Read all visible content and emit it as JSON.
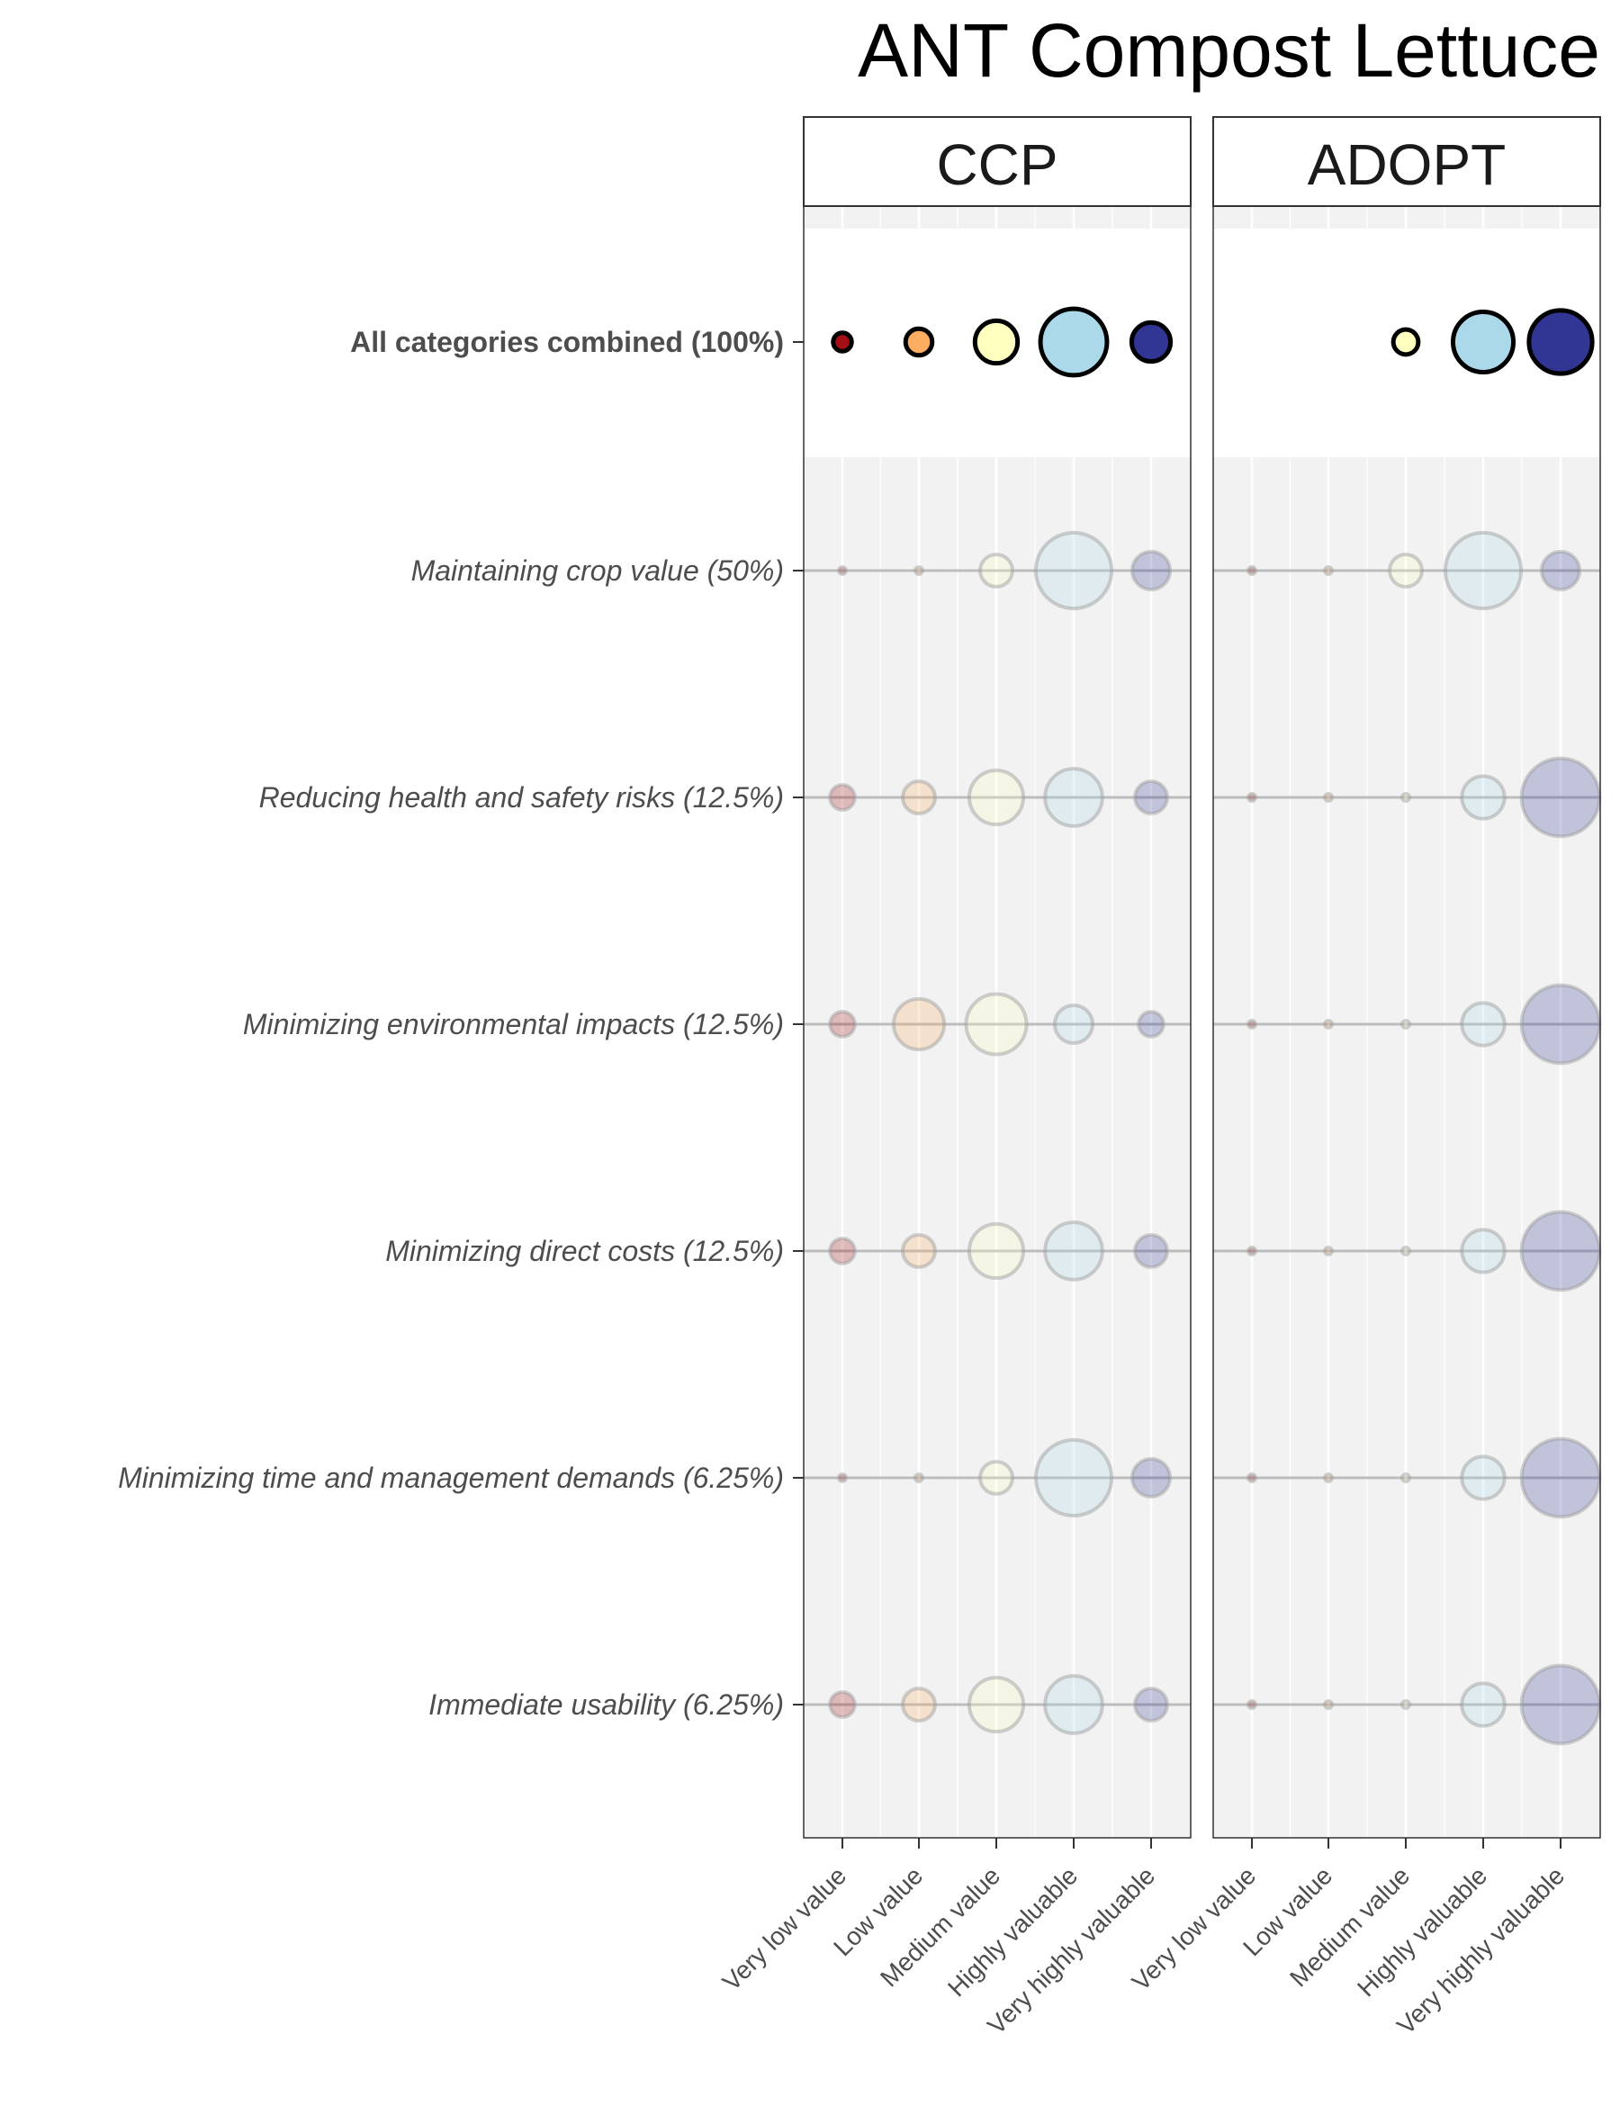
{
  "chart_data": {
    "type": "scatter",
    "title": "ANT Compost Lettuce",
    "facets": [
      "CCP",
      "ADOPT"
    ],
    "x_categories": [
      "Very low value",
      "Low value",
      "Medium value",
      "Highly valuable",
      "Very highly valuable"
    ],
    "y_categories": [
      "All categories combined (100%)",
      "Maintaining crop value (50%)",
      "Reducing health and safety risks (12.5%)",
      "Minimizing environmental impacts (12.5%)",
      "Minimizing direct costs (12.5%)",
      "Minimizing time and management demands (6.25%)",
      "Immediate usability (6.25%)"
    ],
    "highlighted_row": "All categories combined (100%)",
    "colors": [
      "#a50f15",
      "#fdae61",
      "#ffffbf",
      "#abd9e9",
      "#313695"
    ],
    "size_values": {
      "CCP": [
        [
          0.02,
          0.06,
          0.2,
          0.56,
          0.16
        ],
        [
          0.0,
          0.0,
          0.1,
          0.75,
          0.15
        ],
        [
          0.05,
          0.1,
          0.35,
          0.4,
          0.1
        ],
        [
          0.05,
          0.3,
          0.45,
          0.15,
          0.05
        ],
        [
          0.05,
          0.1,
          0.35,
          0.4,
          0.1
        ],
        [
          0.0,
          0.0,
          0.1,
          0.75,
          0.15
        ],
        [
          0.05,
          0.1,
          0.35,
          0.4,
          0.1
        ]
      ],
      "ADOPT": [
        [
          0.0,
          0.0,
          0.05,
          0.45,
          0.5
        ],
        [
          0.0,
          0.0,
          0.1,
          0.75,
          0.15
        ],
        [
          0.0,
          0.0,
          0.0,
          0.2,
          0.8
        ],
        [
          0.0,
          0.0,
          0.0,
          0.2,
          0.8
        ],
        [
          0.0,
          0.0,
          0.0,
          0.2,
          0.8
        ],
        [
          0.0,
          0.0,
          0.0,
          0.2,
          0.8
        ],
        [
          0.0,
          0.0,
          0.0,
          0.2,
          0.8
        ]
      ]
    },
    "grid": true,
    "legend": "none"
  }
}
